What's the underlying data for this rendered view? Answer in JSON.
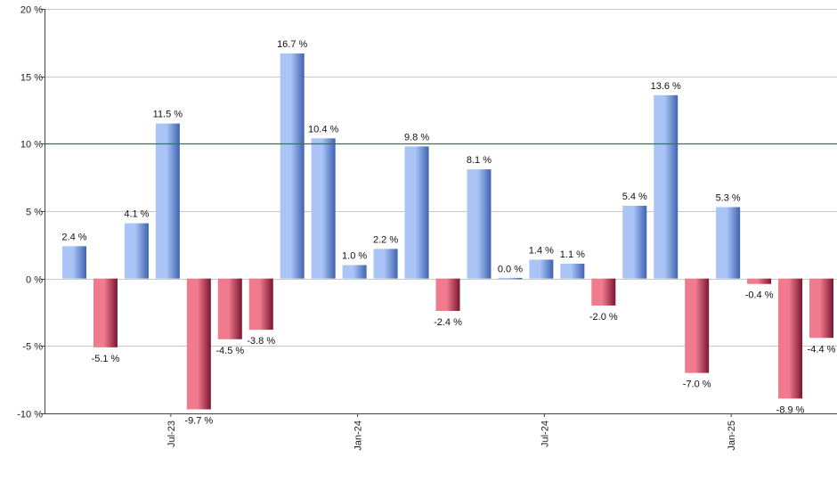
{
  "chart_data": {
    "type": "bar",
    "title": "",
    "xlabel": "",
    "ylabel": "",
    "ylim": [
      -10,
      20
    ],
    "yticks": [
      -10,
      -5,
      0,
      5,
      10,
      15,
      20
    ],
    "y_tick_suffix": " %",
    "reference_line": 10,
    "grid": true,
    "x_tick_labels": [
      {
        "label": "Jul-23",
        "after_bar_index": 3
      },
      {
        "label": "Jan-24",
        "after_bar_index": 9
      },
      {
        "label": "Jul-24",
        "after_bar_index": 15
      },
      {
        "label": "Jan-25",
        "after_bar_index": 21
      }
    ],
    "values": [
      2.4,
      -5.1,
      4.1,
      11.5,
      -9.7,
      -4.5,
      -3.8,
      16.7,
      10.4,
      1.0,
      2.2,
      9.8,
      -2.4,
      8.1,
      0.0,
      1.4,
      1.1,
      -2.0,
      5.4,
      13.6,
      -7.0,
      5.3,
      -0.4,
      -8.9,
      -4.4
    ],
    "data_labels": [
      "2.4 %",
      "-5.1 %",
      "4.1 %",
      "11.5 %",
      "-9.7 %",
      "-4.5 %",
      "-3.8 %",
      "16.7 %",
      "10.4 %",
      "1.0 %",
      "2.2 %",
      "9.8 %",
      "-2.4 %",
      "8.1 %",
      "0.0 %",
      "1.4 %",
      "1.1 %",
      "-2.0 %",
      "5.4 %",
      "13.6 %",
      "-7.0 %",
      "5.3 %",
      "-0.4 %",
      "-8.9 %",
      "-4.4 %"
    ],
    "colors": {
      "positive_light": "#a9c4f5",
      "positive_dark": "#3f63b0",
      "negative_light": "#f07a8e",
      "negative_dark": "#7a1530",
      "grid": "#c8c8c8",
      "axis": "#444444",
      "reference_line": "#2e7d32"
    }
  }
}
